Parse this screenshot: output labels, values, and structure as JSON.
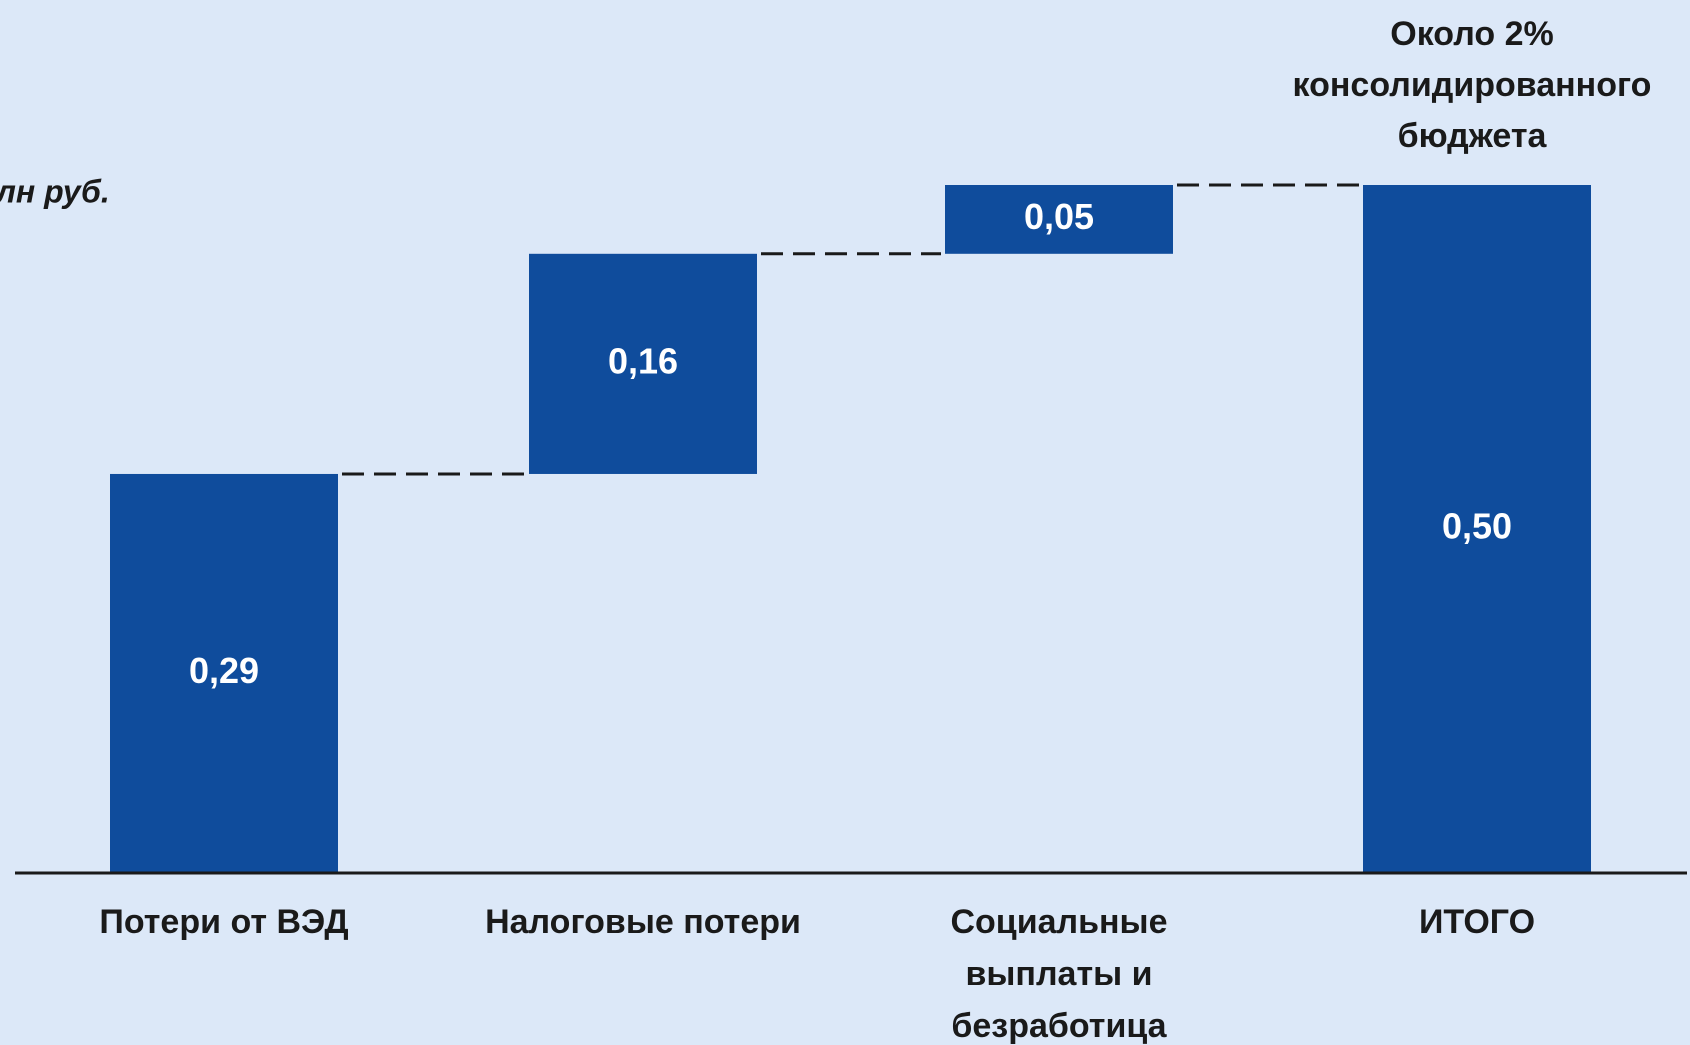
{
  "chart_data": {
    "type": "waterfall",
    "unit_label": "лн руб.",
    "annotation": [
      "Около 2%",
      "консолидированного",
      "бюджета"
    ],
    "categories": [
      [
        "Потери от ВЭД"
      ],
      [
        "Налоговые потери"
      ],
      [
        "Социальные",
        "выплаты и",
        "безработица"
      ],
      [
        "ИТОГО"
      ]
    ],
    "values": [
      0.29,
      0.16,
      0.05,
      0.5
    ],
    "value_labels": [
      "0,29",
      "0,16",
      "0,05",
      "0,50"
    ],
    "color": "#0f4c9c"
  }
}
